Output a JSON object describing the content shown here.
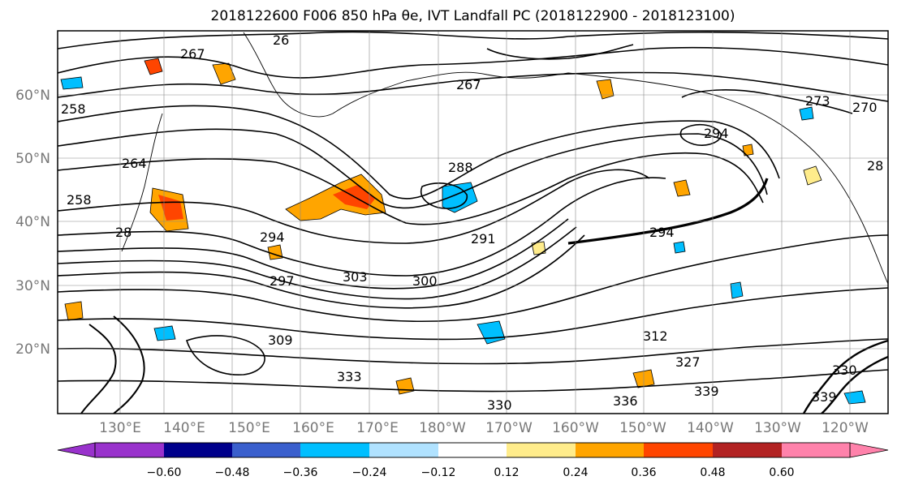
{
  "title": "2018122600 F006 850 hPa θe, IVT Landfall PC (2018122900 - 2018123100)",
  "map": {
    "lat_labels": [
      "60°N",
      "50°N",
      "40°N",
      "30°N",
      "20°N"
    ],
    "lon_labels": [
      "130°E",
      "140°E",
      "150°E",
      "160°E",
      "170°E",
      "180°W",
      "170°W",
      "160°W",
      "150°W",
      "140°W",
      "130°W",
      "120°W"
    ],
    "contour_labels": [
      "267",
      "26",
      "267",
      "258",
      "264",
      "258",
      "28",
      "288",
      "294",
      "291",
      "300",
      "303",
      "294",
      "273",
      "270",
      "28",
      "294",
      "297",
      "309",
      "312",
      "330",
      "333",
      "336",
      "327",
      "339",
      "339",
      "330"
    ]
  },
  "colorbar": {
    "colors": [
      "#9932cc",
      "#00008b",
      "#3a5fcd",
      "#00bfff",
      "#b0e2ff",
      "#ffffff",
      "#ffec8b",
      "#ffa500",
      "#ff4500",
      "#b22222",
      "#ff82ab"
    ],
    "tick_labels": [
      "−0.60",
      "−0.48",
      "−0.36",
      "−0.24",
      "−0.12",
      "0.12",
      "0.24",
      "0.36",
      "0.48",
      "0.60"
    ]
  }
}
